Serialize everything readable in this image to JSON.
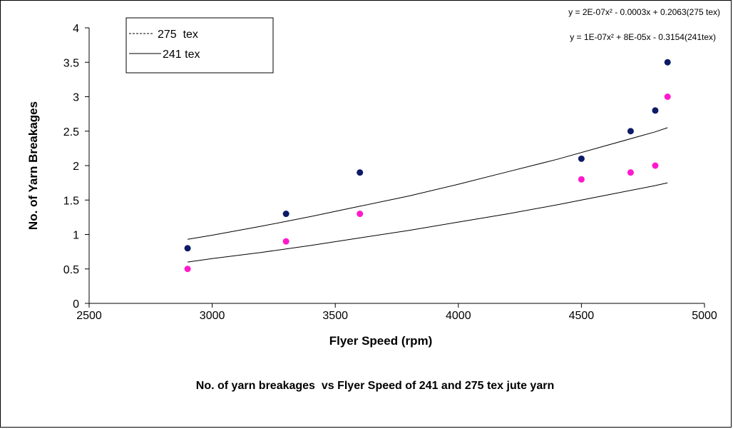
{
  "chart_data": {
    "type": "scatter",
    "title": "",
    "caption": "No. of yarn breakages  vs Flyer Speed of 241 and 275 tex jute yarn",
    "xlabel": "Flyer Speed (rpm)",
    "ylabel": "No. of Yarn Breakages",
    "xlim": [
      2500,
      5000
    ],
    "ylim": [
      0,
      4
    ],
    "x_ticks": [
      2500,
      3000,
      3500,
      4000,
      4500,
      5000
    ],
    "y_ticks": [
      0,
      0.5,
      1,
      1.5,
      2,
      2.5,
      3,
      3.5,
      4
    ],
    "grid": false,
    "legend_position": "top-left",
    "series": [
      {
        "name": "275  tex",
        "line_style": "dashed",
        "color": "#0d1a66",
        "x": [
          2900,
          3300,
          3600,
          4500,
          4700,
          4800,
          4850
        ],
        "y": [
          0.8,
          1.3,
          1.9,
          2.1,
          2.5,
          2.8,
          3.5
        ],
        "trendline": {
          "label": "y = 2E-07x² - 0.0003x + 0.2063(275 tex)",
          "x": [
            2900,
            3000,
            3200,
            3400,
            3600,
            3800,
            4000,
            4200,
            4400,
            4600,
            4800,
            4850
          ],
          "y": [
            0.93,
            0.99,
            1.12,
            1.26,
            1.41,
            1.56,
            1.73,
            1.91,
            2.09,
            2.29,
            2.49,
            2.55
          ]
        }
      },
      {
        "name": "241 tex",
        "line_style": "solid",
        "color": "#ff19cc",
        "x": [
          2900,
          3300,
          3600,
          4500,
          4700,
          4800,
          4850
        ],
        "y": [
          0.5,
          0.9,
          1.3,
          1.8,
          1.9,
          2.0,
          3.0
        ],
        "trendline": {
          "label": "y = 1E-07x² + 8E-05x - 0.3154(241tex)",
          "x": [
            2900,
            3000,
            3200,
            3400,
            3600,
            3800,
            4000,
            4200,
            4400,
            4600,
            4800,
            4850
          ],
          "y": [
            0.6,
            0.65,
            0.74,
            0.84,
            0.95,
            1.06,
            1.18,
            1.3,
            1.43,
            1.57,
            1.71,
            1.75
          ]
        }
      }
    ]
  }
}
